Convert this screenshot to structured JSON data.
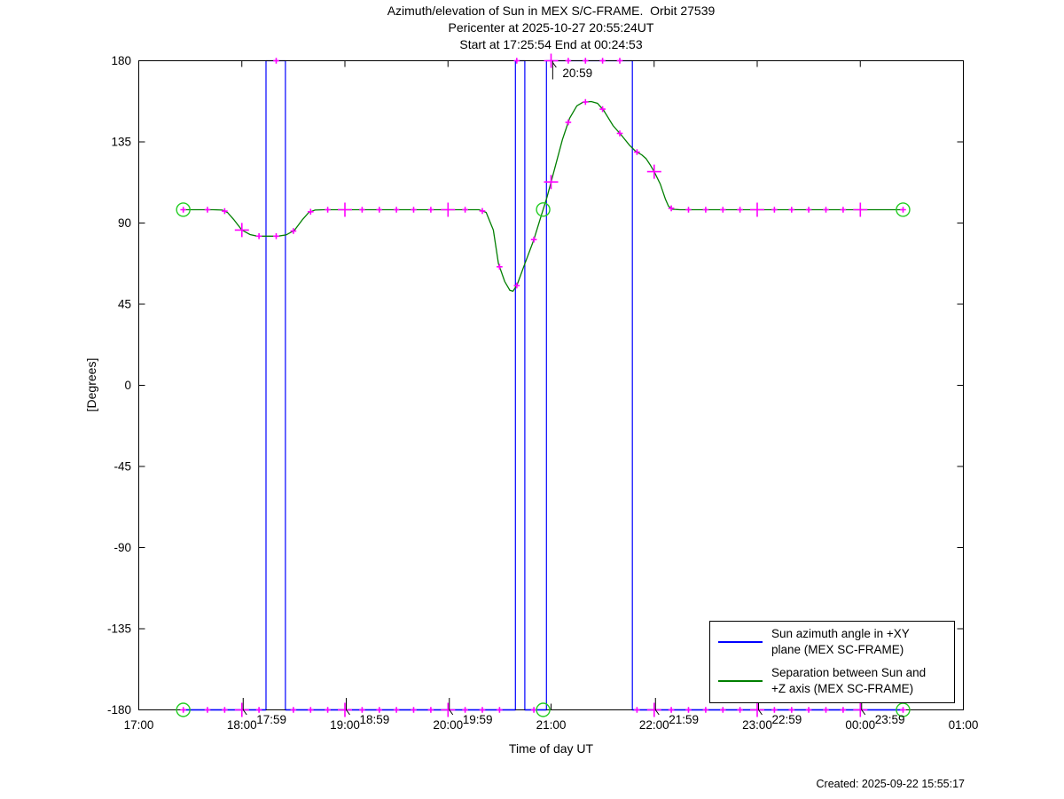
{
  "header": {
    "title_line1": "Azimuth/elevation of Sun in MEX S/C-FRAME.  Orbit 27539",
    "title_line2": "Pericenter at 2025-10-27 20:55:24UT",
    "title_line3": "Start at 17:25:54 End at 00:24:53"
  },
  "footer": {
    "created": "Created: 2025-09-22 15:55:17"
  },
  "legend": {
    "items": [
      {
        "color": "#0000FF",
        "line1": "Sun azimuth angle in +XY",
        "line2": "plane (MEX SC-FRAME)"
      },
      {
        "color": "#007F00",
        "line1": "Separation between Sun and",
        "line2": "+Z axis (MEX SC-FRAME)"
      }
    ]
  },
  "chart_data": {
    "type": "line",
    "title": "Azimuth/elevation of Sun in MEX S/C-FRAME.  Orbit 27539",
    "subtitle1": "Pericenter at 2025-10-27 20:55:24UT",
    "subtitle2": "Start at 17:25:54 End at 00:24:53",
    "xlabel": "Time of day UT",
    "ylabel": "[Degrees]",
    "xlim_hours": [
      17,
      25
    ],
    "ylim": [
      -180,
      180
    ],
    "grid": false,
    "legend_position": "lower right inside",
    "x_ticks": [
      {
        "hour": 17,
        "label": "17:00"
      },
      {
        "hour": 18,
        "label": "18:00"
      },
      {
        "hour": 19,
        "label": "19:00"
      },
      {
        "hour": 20,
        "label": "20:00"
      },
      {
        "hour": 21,
        "label": "21:00"
      },
      {
        "hour": 22,
        "label": "22:00"
      },
      {
        "hour": 23,
        "label": "23:00"
      },
      {
        "hour": 24,
        "label": "00:00"
      },
      {
        "hour": 25,
        "label": "01:00"
      }
    ],
    "y_ticks": [
      {
        "value": 180,
        "label": "180"
      },
      {
        "value": 135,
        "label": "135"
      },
      {
        "value": 90,
        "label": "90"
      },
      {
        "value": 45,
        "label": "45"
      },
      {
        "value": 0,
        "label": "0"
      },
      {
        "value": -45,
        "label": "-45"
      },
      {
        "value": -90,
        "label": "-90"
      },
      {
        "value": -135,
        "label": "-135"
      },
      {
        "value": -180,
        "label": "-180"
      }
    ],
    "series": [
      {
        "name": "Sun azimuth angle in +XY plane (MEX SC-FRAME)",
        "color": "#0000FF",
        "points": [
          [
            17.43,
            -180
          ],
          [
            18.234,
            -180
          ],
          [
            18.234,
            180
          ],
          [
            18.423,
            180
          ],
          [
            18.423,
            -180
          ],
          [
            20.654,
            -180
          ],
          [
            20.654,
            180
          ],
          [
            20.745,
            180
          ],
          [
            20.745,
            -180
          ],
          [
            20.955,
            -180
          ],
          [
            20.955,
            180
          ],
          [
            21.789,
            180
          ],
          [
            21.789,
            -180
          ],
          [
            24.414,
            -180
          ]
        ]
      },
      {
        "name": "Separation between Sun and +Z axis (MEX SC-FRAME)",
        "color": "#007F00",
        "points": [
          [
            17.43,
            97.4
          ],
          [
            17.72,
            97.4
          ],
          [
            17.81,
            97.2
          ],
          [
            17.86,
            95.9
          ],
          [
            17.92,
            92.0
          ],
          [
            18.0,
            86.1
          ],
          [
            18.08,
            83.6
          ],
          [
            18.15,
            82.7
          ],
          [
            18.35,
            82.7
          ],
          [
            18.43,
            83.4
          ],
          [
            18.51,
            85.9
          ],
          [
            18.59,
            92.0
          ],
          [
            18.65,
            95.9
          ],
          [
            18.71,
            97.2
          ],
          [
            18.8,
            97.4
          ],
          [
            20.3,
            97.4
          ],
          [
            20.37,
            95.9
          ],
          [
            20.44,
            86.1
          ],
          [
            20.49,
            67.4
          ],
          [
            20.55,
            57.6
          ],
          [
            20.6,
            52.7
          ],
          [
            20.63,
            52.2
          ],
          [
            20.67,
            55.6
          ],
          [
            20.73,
            65.0
          ],
          [
            20.83,
            80.2
          ],
          [
            20.91,
            95.0
          ],
          [
            20.96,
            104.3
          ],
          [
            21.03,
            119.1
          ],
          [
            21.11,
            136.3
          ],
          [
            21.18,
            148.1
          ],
          [
            21.25,
            155.0
          ],
          [
            21.31,
            157.0
          ],
          [
            21.39,
            157.4
          ],
          [
            21.45,
            156.4
          ],
          [
            21.51,
            152.5
          ],
          [
            21.6,
            144.1
          ],
          [
            21.69,
            138.2
          ],
          [
            21.76,
            133.2
          ],
          [
            21.82,
            129.8
          ],
          [
            21.88,
            127.8
          ],
          [
            21.92,
            125.8
          ],
          [
            21.96,
            122.4
          ],
          [
            22.0,
            118.5
          ],
          [
            22.06,
            111.6
          ],
          [
            22.11,
            103.2
          ],
          [
            22.14,
            99.3
          ],
          [
            22.18,
            97.6
          ],
          [
            22.25,
            97.4
          ],
          [
            24.414,
            97.4
          ]
        ]
      }
    ],
    "time_markers": {
      "color": "#FF00FF",
      "start_hour": 17.6667,
      "end_hour": 24.1667,
      "step_hours": 0.166667,
      "big_on_whole_hours": true,
      "azimuth_plus180_intervals": [
        [
          18.234,
          18.423
        ],
        [
          20.654,
          20.745
        ],
        [
          20.955,
          21.789
        ]
      ]
    },
    "key_points": {
      "circle_color": "#22CC22",
      "times": [
        {
          "hour": 17.4317,
          "label": "start",
          "plus": true
        },
        {
          "hour": 20.9233,
          "label": "pericenter",
          "plus": false
        },
        {
          "hour": 24.4147,
          "label": "end",
          "plus": true
        }
      ]
    },
    "annotations": [
      {
        "hour": 18.013,
        "label": "17:59",
        "side": "bottom"
      },
      {
        "hour": 19.013,
        "label": "18:59",
        "side": "bottom"
      },
      {
        "hour": 20.013,
        "label": "19:59",
        "side": "bottom"
      },
      {
        "hour": 21.016,
        "label": "20:59",
        "side": "top"
      },
      {
        "hour": 22.013,
        "label": "21:59",
        "side": "bottom"
      },
      {
        "hour": 23.013,
        "label": "22:59",
        "side": "bottom"
      },
      {
        "hour": 24.013,
        "label": "23:59",
        "side": "bottom"
      }
    ]
  }
}
